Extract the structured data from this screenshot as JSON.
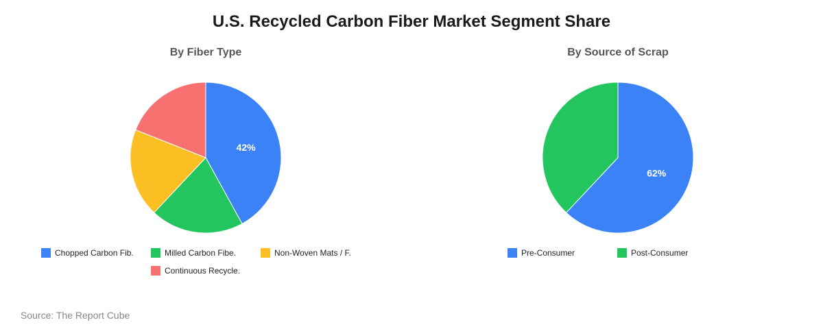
{
  "title": "U.S. Recycled Carbon Fiber Market Segment Share",
  "source": "Source: The Report Cube",
  "chart_data": [
    {
      "type": "pie",
      "title": "By Fiber Type",
      "slices": [
        {
          "label": "Chopped Carbon Fib.",
          "value": 42,
          "color": "#3b82f6",
          "data_label": "42%"
        },
        {
          "label": "Milled Carbon Fibe.",
          "value": 20,
          "color": "#22c55e",
          "data_label": ""
        },
        {
          "label": "Non-Woven Mats / F.",
          "value": 19,
          "color": "#fbbf24",
          "data_label": ""
        },
        {
          "label": "Continuous Recycle.",
          "value": 19,
          "color": "#f87171",
          "data_label": ""
        }
      ],
      "legend_position": "bottom"
    },
    {
      "type": "pie",
      "title": "By Source of Scrap",
      "slices": [
        {
          "label": "Pre-Consumer",
          "value": 62,
          "color": "#3b82f6",
          "data_label": "62%"
        },
        {
          "label": "Post-Consumer",
          "value": 38,
          "color": "#22c55e",
          "data_label": ""
        }
      ],
      "legend_position": "bottom"
    }
  ]
}
